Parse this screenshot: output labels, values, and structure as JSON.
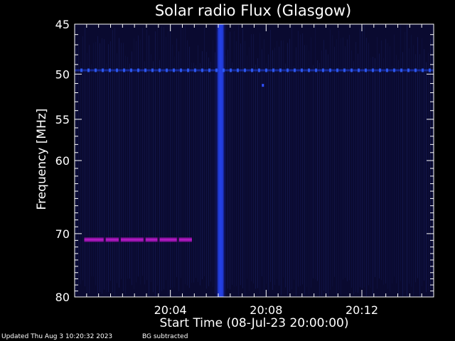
{
  "chart_data": {
    "type": "heatmap",
    "title": "Solar radio Flux (Glasgow)",
    "xlabel": "Start Time (08-Jul-23 20:00:00)",
    "ylabel": "Frequency [MHz]",
    "x_range_minutes": [
      0,
      15.0
    ],
    "y_range_mhz": [
      45,
      80
    ],
    "y_scale": "log",
    "y_inverted": true,
    "x_ticks": [
      {
        "minute": 4,
        "label": "20:04"
      },
      {
        "minute": 8,
        "label": "20:08"
      },
      {
        "minute": 12,
        "label": "20:12"
      }
    ],
    "y_ticks": [
      {
        "mhz": 45,
        "label": "45"
      },
      {
        "mhz": 50,
        "label": "50"
      },
      {
        "mhz": 55,
        "label": "55"
      },
      {
        "mhz": 60,
        "label": "60"
      },
      {
        "mhz": 70,
        "label": "70"
      },
      {
        "mhz": 80,
        "label": "80"
      }
    ],
    "background_color": "#0a0a30",
    "features": [
      {
        "name": "burst-column",
        "minute_start": 5.85,
        "minute_end": 6.35,
        "mhz_start": 45,
        "mhz_end": 80,
        "color": "#1a30c8"
      },
      {
        "name": "interference-line-50",
        "mhz": 49.6,
        "minute_start": 0,
        "minute_end": 15.0,
        "color": "#2040e0"
      },
      {
        "name": "interference-line-71",
        "mhz": 70.9,
        "minute_start": 0.4,
        "minute_end": 4.9,
        "color": "#8a10a0"
      }
    ]
  },
  "footer": {
    "updated": "Updated Thu Aug  3 10:20:32 2023",
    "bg": "BG subtracted"
  }
}
